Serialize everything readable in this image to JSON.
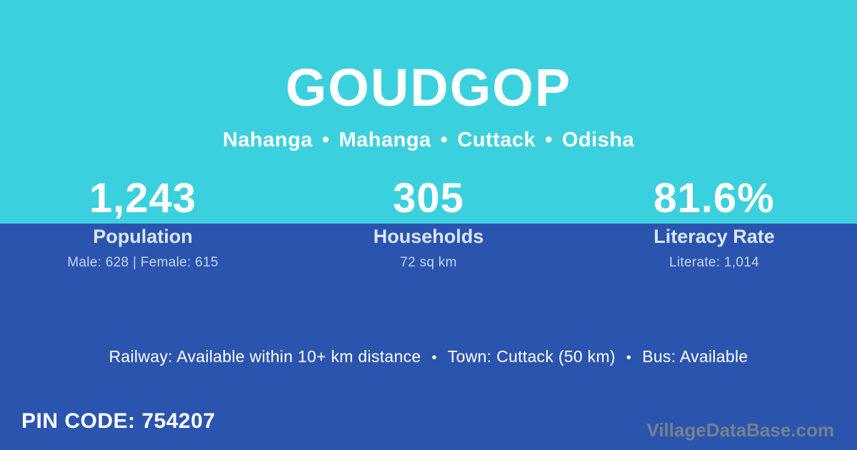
{
  "theme": {
    "top_bg": "#3bd0de",
    "bottom_bg": "#2a54ae",
    "text_primary": "#ffffff",
    "label_color": "#dce6f5",
    "substat_color": "#c9d5ec",
    "watermark_color": "#76808e"
  },
  "header": {
    "title": "GOUDGOP",
    "subtitle_parts": [
      "Nahanga",
      "Mahanga",
      "Cuttack",
      "Odisha"
    ],
    "separator": "•"
  },
  "stats": [
    {
      "value": "1,243",
      "label": "Population",
      "sub": "Male: 628 | Female: 615"
    },
    {
      "value": "305",
      "label": "Households",
      "sub": "72 sq km"
    },
    {
      "value": "81.6%",
      "label": "Literacy Rate",
      "sub": "Literate: 1,014"
    }
  ],
  "facts": {
    "items": [
      "Railway: Available within 10+ km distance",
      "Town: Cuttack (50 km)",
      "Bus: Available"
    ],
    "separator": "•"
  },
  "footer": {
    "pin_code": "PIN CODE: 754207",
    "watermark": "VillageDataBase.com"
  }
}
